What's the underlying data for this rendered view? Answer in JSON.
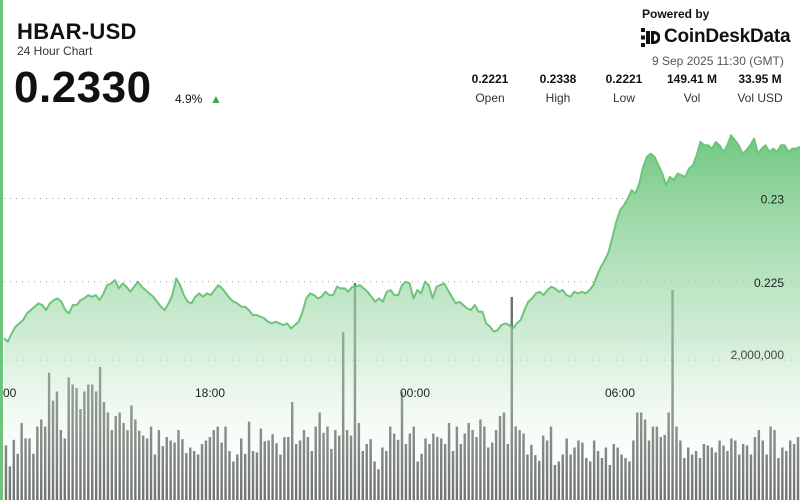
{
  "header": {
    "pair": "HBAR-USD",
    "subtitle": "24 Hour Chart",
    "price": "0.2330",
    "change": "4.9%",
    "change_direction_icon": "triangle-up-icon"
  },
  "branding": {
    "powered_by": "Powered by",
    "brand_name": "CoinDeskData",
    "timestamp": "9 Sep 2025 11:30 (GMT)"
  },
  "stats": [
    {
      "value": "0.2221",
      "label": "Open"
    },
    {
      "value": "0.2338",
      "label": "High"
    },
    {
      "value": "0.2221",
      "label": "Low"
    },
    {
      "value": "149.41 M",
      "label": "Vol"
    },
    {
      "value": "33.95 M",
      "label": "Vol USD"
    }
  ],
  "colors": {
    "line": "#6cc57a",
    "area_top": "#69c57a",
    "gridline": "#9a9a9a",
    "volume_bar": "#5f6460",
    "up": "#3aa84e"
  },
  "chart_data": {
    "type": "line",
    "title": "",
    "xlabel": "",
    "ylabel": "",
    "price_ylim": [
      0.2209,
      0.2352
    ],
    "x_tick_labels": [
      "00",
      "18:00",
      "00:00",
      "06:00"
    ],
    "y_tick_labels": [
      "0.23",
      "0.225"
    ],
    "y_ticks": [
      0.23,
      0.225
    ],
    "volume_tick_labels": [
      "2,000,000"
    ],
    "volume_ticks": [
      2000000
    ],
    "volume_ylim": [
      0,
      3000000
    ],
    "series": [
      {
        "values": [
          0.2216,
          0.2214,
          0.2219,
          0.2223,
          0.2225,
          0.2227,
          0.2231,
          0.2233,
          0.2235,
          0.2237,
          0.2236,
          0.2233,
          0.2237,
          0.2239,
          0.224,
          0.2238,
          0.2233,
          0.2231,
          0.2236,
          0.2236,
          0.2239,
          0.224,
          0.2242,
          0.2241,
          0.2242,
          0.2239,
          0.2243,
          0.2248,
          0.2249,
          0.2251,
          0.2246,
          0.2249,
          0.2247,
          0.2244,
          0.2247,
          0.225,
          0.2247,
          0.2245,
          0.2243,
          0.2241,
          0.2238,
          0.2235,
          0.2233,
          0.2237,
          0.2242,
          0.2252,
          0.2248,
          0.2242,
          0.2238,
          0.2237,
          0.2241,
          0.2243,
          0.2241,
          0.2243,
          0.2242,
          0.2245,
          0.2248,
          0.2246,
          0.2243,
          0.224,
          0.2238,
          0.2237,
          0.2235,
          0.2235,
          0.2233,
          0.223,
          0.223,
          0.2229,
          0.2228,
          0.2226,
          0.2225,
          0.2226,
          0.2225,
          0.2224,
          0.2225,
          0.2222,
          0.2224,
          0.2226,
          0.2232,
          0.224,
          0.2243,
          0.2242,
          0.224,
          0.2241,
          0.2244,
          0.2242,
          0.2242,
          0.2247,
          0.2246,
          0.2246,
          0.2244,
          0.2247,
          0.2247,
          0.2248,
          0.2246,
          0.2244,
          0.2241,
          0.2238,
          0.224,
          0.2238,
          0.2244,
          0.2245,
          0.2242,
          0.2242,
          0.2248,
          0.225,
          0.2249,
          0.224,
          0.2245,
          0.2243,
          0.225,
          0.2248,
          0.224,
          0.2247,
          0.2248,
          0.2249,
          0.2245,
          0.2241,
          0.2237,
          0.2238,
          0.2236,
          0.2234,
          0.2233,
          0.2236,
          0.2232,
          0.2232,
          0.2225,
          0.2223,
          0.222,
          0.2221,
          0.2224,
          0.2225,
          0.2224,
          0.2222,
          0.2225,
          0.2227,
          0.2233,
          0.2238,
          0.224,
          0.2243,
          0.2244,
          0.2242,
          0.2245,
          0.2247,
          0.2246,
          0.2244,
          0.2245,
          0.2242,
          0.2241,
          0.2244,
          0.2243,
          0.2244,
          0.2243,
          0.2245,
          0.2248,
          0.2254,
          0.2259,
          0.2263,
          0.2268,
          0.2277,
          0.2286,
          0.2293,
          0.2296,
          0.23,
          0.2305,
          0.2303,
          0.2309,
          0.2319,
          0.2325,
          0.2327,
          0.2325,
          0.232,
          0.2315,
          0.2308,
          0.2313,
          0.2311,
          0.2315,
          0.2314,
          0.2313,
          0.2318,
          0.232,
          0.2326,
          0.2334,
          0.2332,
          0.2332,
          0.233,
          0.2334,
          0.2332,
          0.2328,
          0.2332,
          0.2338,
          0.2335,
          0.2332,
          0.2327,
          0.2329,
          0.2332,
          0.2336,
          0.2327,
          0.233,
          0.2332,
          0.2328,
          0.233,
          0.2328,
          0.2332,
          0.2332,
          0.2328,
          0.233,
          0.233,
          0.2331
        ]
      }
    ],
    "volume": [
      780000,
      480000,
      860000,
      660000,
      1100000,
      880000,
      880000,
      660000,
      1050000,
      1150000,
      1050000,
      1820000,
      1420000,
      1550000,
      1000000,
      880000,
      1750000,
      1650000,
      1600000,
      1300000,
      1550000,
      1650000,
      1650000,
      1550000,
      1900000,
      1400000,
      1250000,
      1000000,
      1200000,
      1250000,
      1100000,
      1000000,
      1350000,
      1150000,
      990000,
      920000,
      880000,
      1050000,
      650000,
      1000000,
      770000,
      900000,
      850000,
      820000,
      1000000,
      870000,
      670000,
      750000,
      700000,
      650000,
      800000,
      850000,
      900000,
      1000000,
      1050000,
      820000,
      1050000,
      700000,
      550000,
      650000,
      880000,
      660000,
      1120000,
      700000,
      680000,
      1020000,
      840000,
      850000,
      940000,
      810000,
      650000,
      900000,
      900000,
      1400000,
      800000,
      850000,
      1000000,
      900000,
      700000,
      1050000,
      1250000,
      960000,
      1050000,
      730000,
      1000000,
      920000,
      2400000,
      1000000,
      920000,
      3100000,
      1100000,
      700000,
      800000,
      870000,
      550000,
      440000,
      750000,
      700000,
      1050000,
      950000,
      860000,
      1550000,
      800000,
      950000,
      1050000,
      550000,
      660000,
      880000,
      800000,
      950000,
      900000,
      880000,
      800000,
      1100000,
      700000,
      1050000,
      800000,
      950000,
      1100000,
      1000000,
      900000,
      1150000,
      1050000,
      750000,
      820000,
      1000000,
      1200000,
      1250000,
      800000,
      2900000,
      1050000,
      1000000,
      950000,
      650000,
      790000,
      640000,
      560000,
      920000,
      850000,
      1050000,
      500000,
      550000,
      650000,
      880000,
      650000,
      750000,
      850000,
      820000,
      600000,
      550000,
      850000,
      700000,
      600000,
      750000,
      500000,
      800000,
      750000,
      650000,
      600000,
      550000,
      850000,
      1250000,
      1250000,
      1150000,
      850000,
      1050000,
      1050000,
      900000,
      930000,
      1250000,
      3000000,
      1050000,
      850000,
      600000,
      750000,
      650000,
      700000,
      600000,
      800000,
      780000,
      750000,
      680000,
      850000,
      780000,
      700000,
      880000,
      850000,
      650000,
      800000,
      780000,
      650000,
      900000,
      1000000,
      850000,
      650000,
      1050000,
      1000000,
      600000,
      750000,
      700000,
      850000,
      800000,
      900000
    ]
  }
}
